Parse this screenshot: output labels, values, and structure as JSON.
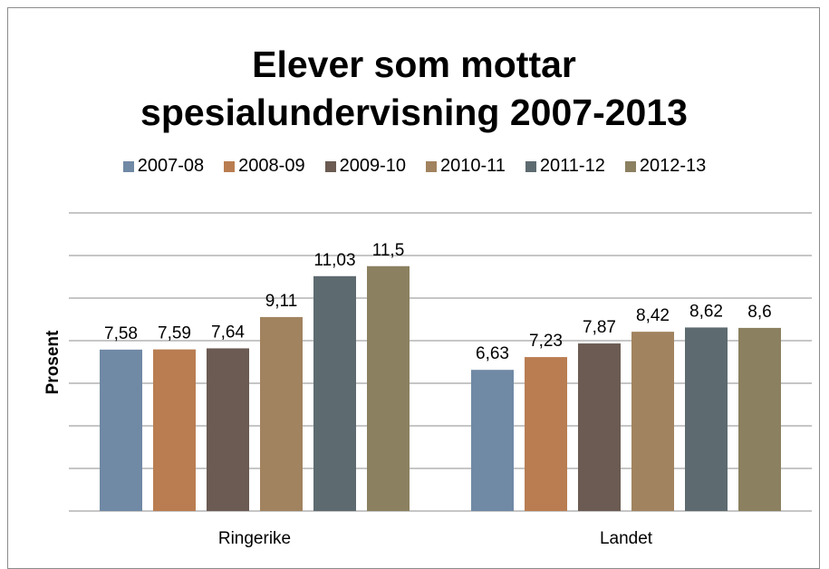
{
  "chart_data": {
    "type": "bar",
    "title": "Elever som mottar spesialundervisning 2007-2013",
    "ylabel": "Prosent",
    "categories": [
      "Ringerike",
      "Landet"
    ],
    "series": [
      {
        "name": "2007-08",
        "color": "#7089a5",
        "values": [
          7.58,
          6.63
        ],
        "value_labels": [
          "7,58",
          "6,63"
        ]
      },
      {
        "name": "2008-09",
        "color": "#b97d51",
        "values": [
          7.59,
          7.23
        ],
        "value_labels": [
          "7,59",
          "7,23"
        ]
      },
      {
        "name": "2009-10",
        "color": "#6b5b52",
        "values": [
          7.64,
          7.87
        ],
        "value_labels": [
          "7,64",
          "7,87"
        ]
      },
      {
        "name": "2010-11",
        "color": "#a1835f",
        "values": [
          9.11,
          8.42
        ],
        "value_labels": [
          "9,11",
          "8,42"
        ]
      },
      {
        "name": "2011-12",
        "color": "#5d6b70",
        "values": [
          11.03,
          8.62
        ],
        "value_labels": [
          "11,03",
          "8,62"
        ]
      },
      {
        "name": "2012-13",
        "color": "#8b8060",
        "values": [
          11.5,
          8.6
        ],
        "value_labels": [
          "11,5",
          "8,6"
        ]
      }
    ],
    "ylim": [
      0,
      14
    ],
    "yticks": [
      0,
      2,
      4,
      6,
      8,
      10,
      12,
      14
    ],
    "grid": true,
    "legend": "top"
  }
}
